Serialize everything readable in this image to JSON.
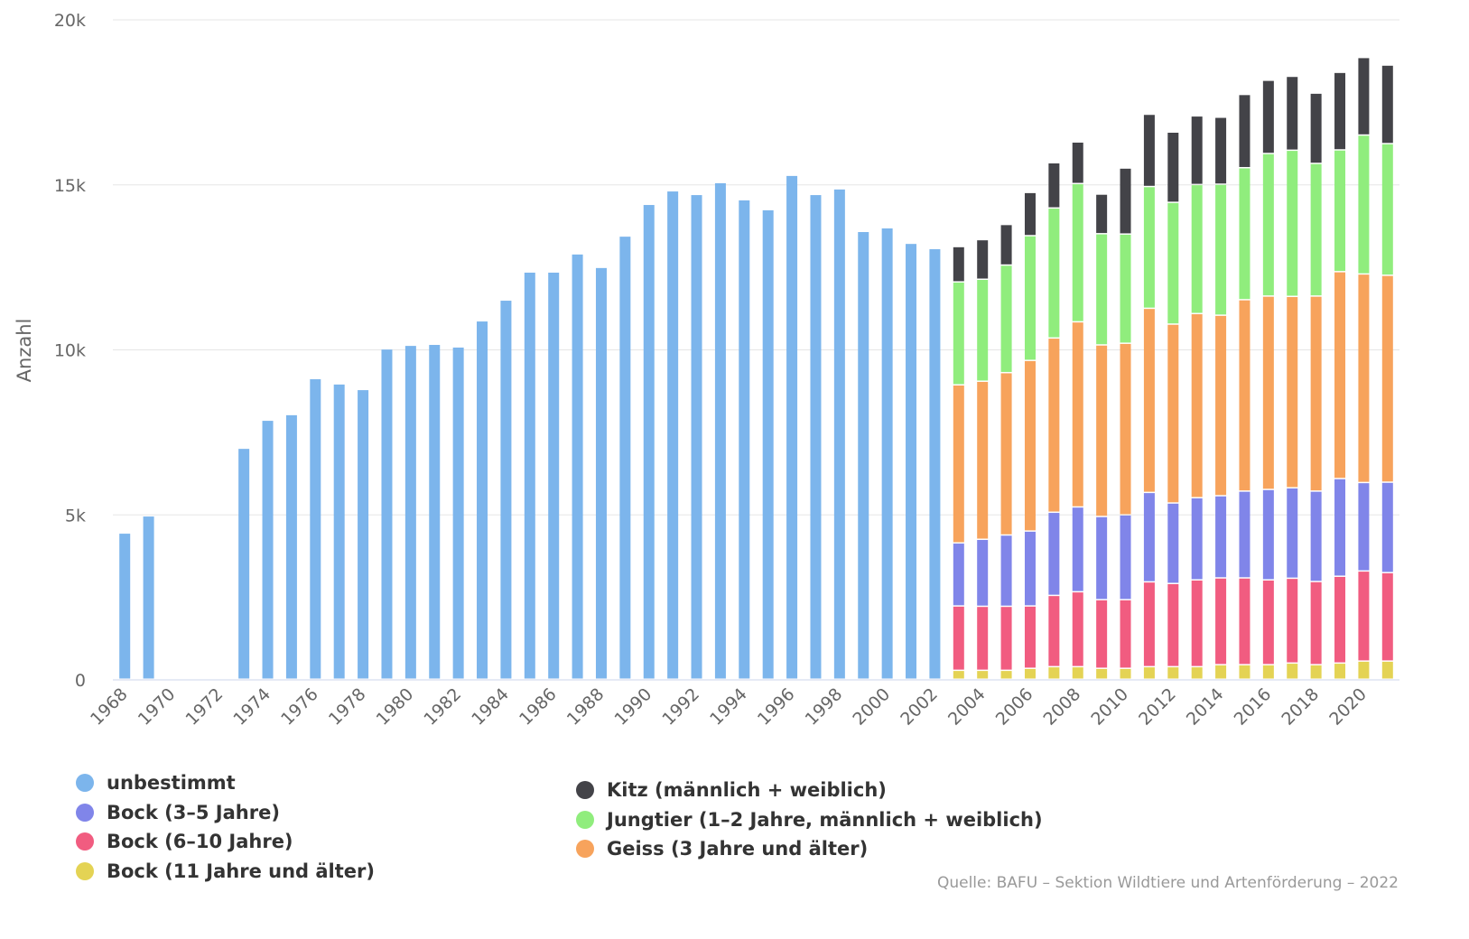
{
  "chart_data": {
    "type": "bar",
    "stacked": true,
    "title": "",
    "xlabel": "",
    "ylabel": "Anzahl",
    "ylim": [
      0,
      20000
    ],
    "yticks": [
      0,
      5000,
      10000,
      15000,
      20000
    ],
    "ytick_labels": [
      "0",
      "5k",
      "10k",
      "15k",
      "20k"
    ],
    "grid": true,
    "legend_position": "bottom",
    "categories": [
      1968,
      1969,
      1970,
      1971,
      1972,
      1973,
      1974,
      1975,
      1976,
      1977,
      1978,
      1979,
      1980,
      1981,
      1982,
      1983,
      1984,
      1985,
      1986,
      1987,
      1988,
      1989,
      1990,
      1991,
      1992,
      1993,
      1994,
      1995,
      1996,
      1997,
      1998,
      1999,
      2000,
      2001,
      2002,
      2003,
      2004,
      2005,
      2006,
      2007,
      2008,
      2009,
      2010,
      2011,
      2012,
      2013,
      2014,
      2015,
      2016,
      2017,
      2018,
      2019,
      2020,
      2021
    ],
    "series": [
      {
        "name": "Bock (11 Jahre und älter)",
        "color": "#e4d354",
        "values": [
          null,
          null,
          null,
          null,
          null,
          null,
          null,
          null,
          null,
          null,
          null,
          null,
          null,
          null,
          null,
          null,
          null,
          null,
          null,
          null,
          null,
          null,
          null,
          null,
          null,
          null,
          null,
          null,
          null,
          null,
          null,
          null,
          null,
          null,
          null,
          270,
          270,
          270,
          330,
          380,
          380,
          330,
          330,
          380,
          380,
          380,
          440,
          440,
          440,
          490,
          440,
          490,
          550,
          550
        ]
      },
      {
        "name": "Bock (6–10 Jahre)",
        "color": "#f15c80",
        "values": [
          null,
          null,
          null,
          null,
          null,
          null,
          null,
          null,
          null,
          null,
          null,
          null,
          null,
          null,
          null,
          null,
          null,
          null,
          null,
          null,
          null,
          null,
          null,
          null,
          null,
          null,
          null,
          null,
          null,
          null,
          null,
          null,
          null,
          null,
          null,
          1950,
          1940,
          1940,
          1890,
          2160,
          2270,
          2080,
          2080,
          2570,
          2520,
          2630,
          2630,
          2630,
          2570,
          2570,
          2520,
          2630,
          2730,
          2680
        ]
      },
      {
        "name": "Bock (3–5 Jahre)",
        "color": "#8085e9",
        "values": [
          null,
          null,
          null,
          null,
          null,
          null,
          null,
          null,
          null,
          null,
          null,
          null,
          null,
          null,
          null,
          null,
          null,
          null,
          null,
          null,
          null,
          null,
          null,
          null,
          null,
          null,
          null,
          null,
          null,
          null,
          null,
          null,
          null,
          null,
          null,
          1910,
          2030,
          2160,
          2270,
          2520,
          2570,
          2520,
          2570,
          2710,
          2440,
          2490,
          2490,
          2630,
          2740,
          2740,
          2740,
          2960,
          2680,
          2740
        ]
      },
      {
        "name": "Geiss (3 Jahre und älter)",
        "color": "#f7a35c",
        "values": [
          null,
          null,
          null,
          null,
          null,
          null,
          null,
          null,
          null,
          null,
          null,
          null,
          null,
          null,
          null,
          null,
          null,
          null,
          null,
          null,
          null,
          null,
          null,
          null,
          null,
          null,
          null,
          null,
          null,
          null,
          null,
          null,
          null,
          null,
          null,
          4790,
          4790,
          4920,
          5170,
          5280,
          5610,
          5200,
          5200,
          5580,
          5420,
          5580,
          5470,
          5800,
          5860,
          5800,
          5910,
          6270,
          6320,
          6270
        ]
      },
      {
        "name": "Jungtier (1–2 Jahre, männlich + weiblich)",
        "color": "#90ed7d",
        "values": [
          null,
          null,
          null,
          null,
          null,
          null,
          null,
          null,
          null,
          null,
          null,
          null,
          null,
          null,
          null,
          null,
          null,
          null,
          null,
          null,
          null,
          null,
          null,
          null,
          null,
          null,
          null,
          null,
          null,
          null,
          null,
          null,
          null,
          null,
          null,
          3120,
          3090,
          3260,
          3780,
          3940,
          4190,
          3370,
          3310,
          3690,
          3690,
          3910,
          3970,
          4000,
          4320,
          4430,
          4020,
          3690,
          4210,
          3990
        ]
      },
      {
        "name": "Kitz (männlich + weiblich)",
        "color": "#434348",
        "values": [
          null,
          null,
          null,
          null,
          null,
          null,
          null,
          null,
          null,
          null,
          null,
          null,
          null,
          null,
          null,
          null,
          null,
          null,
          null,
          null,
          null,
          null,
          null,
          null,
          null,
          null,
          null,
          null,
          null,
          null,
          null,
          null,
          null,
          null,
          null,
          1070,
          1200,
          1230,
          1310,
          1370,
          1260,
          1200,
          2000,
          2190,
          2130,
          2080,
          2030,
          2220,
          2220,
          2240,
          2130,
          2350,
          2350,
          2380
        ]
      },
      {
        "name": "unbestimmt",
        "color": "#7cb5ec",
        "values": [
          4430,
          4950,
          null,
          null,
          null,
          7000,
          7850,
          8020,
          9110,
          8950,
          8780,
          10010,
          10120,
          10150,
          10070,
          10860,
          11490,
          12340,
          12340,
          12890,
          12480,
          13430,
          14390,
          14800,
          14690,
          15050,
          14530,
          14230,
          15270,
          14690,
          14860,
          13570,
          13680,
          13210,
          13050,
          null,
          null,
          null,
          null,
          null,
          null,
          null,
          null,
          null,
          null,
          null,
          null,
          null,
          null,
          null,
          null,
          null,
          null,
          null
        ]
      }
    ],
    "legend": {
      "left": [
        "unbestimmt",
        "Bock (3–5 Jahre)",
        "Bock (6–10 Jahre)",
        "Bock (11 Jahre und älter)"
      ],
      "right": [
        "Kitz (männlich + weiblich)",
        "Jungtier (1–2 Jahre, männlich + weiblich)",
        "Geiss (3 Jahre und älter)"
      ]
    },
    "source": "Quelle: BAFU – Sektion Wildtiere und Artenförderung – 2022"
  }
}
